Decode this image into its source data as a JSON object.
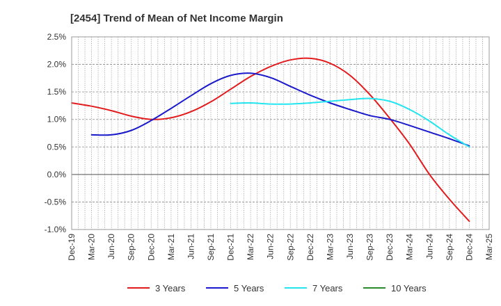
{
  "chart_data": {
    "type": "line",
    "title": "[2454]  Trend of Mean of Net Income Margin",
    "xlabel": "",
    "ylabel": "",
    "x_ticks": [
      "Dec-19",
      "Mar-20",
      "Jun-20",
      "Sep-20",
      "Dec-20",
      "Mar-21",
      "Jun-21",
      "Sep-21",
      "Dec-21",
      "Mar-22",
      "Jun-22",
      "Sep-22",
      "Dec-22",
      "Mar-23",
      "Jun-23",
      "Sep-23",
      "Dec-23",
      "Mar-24",
      "Jun-24",
      "Sep-24",
      "Dec-24",
      "Mar-25"
    ],
    "y_ticks": [
      "2.5%",
      "2.0%",
      "1.5%",
      "1.0%",
      "0.5%",
      "0.0%",
      "-0.5%",
      "-1.0%"
    ],
    "ylim": [
      -1.0,
      2.5
    ],
    "grid": true,
    "legend_position": "bottom",
    "series": [
      {
        "name": "3 Years",
        "color": "#e31a1c",
        "points": [
          [
            "Dec-19",
            1.3
          ],
          [
            "Mar-20",
            1.24
          ],
          [
            "Jun-20",
            1.16
          ],
          [
            "Sep-20",
            1.06
          ],
          [
            "Dec-20",
            1.0
          ],
          [
            "Mar-21",
            1.03
          ],
          [
            "Jun-21",
            1.14
          ],
          [
            "Sep-21",
            1.32
          ],
          [
            "Dec-21",
            1.55
          ],
          [
            "Mar-22",
            1.78
          ],
          [
            "Jun-22",
            1.96
          ],
          [
            "Sep-22",
            2.08
          ],
          [
            "Dec-22",
            2.11
          ],
          [
            "Mar-23",
            2.02
          ],
          [
            "Jun-23",
            1.8
          ],
          [
            "Sep-23",
            1.45
          ],
          [
            "Dec-23",
            1.02
          ],
          [
            "Mar-24",
            0.55
          ],
          [
            "Jun-24",
            0.0
          ],
          [
            "Sep-24",
            -0.45
          ],
          [
            "Dec-24",
            -0.85
          ]
        ]
      },
      {
        "name": "5 Years",
        "color": "#1a1acc",
        "points": [
          [
            "Mar-20",
            0.72
          ],
          [
            "Jun-20",
            0.72
          ],
          [
            "Sep-20",
            0.8
          ],
          [
            "Dec-20",
            0.98
          ],
          [
            "Mar-21",
            1.2
          ],
          [
            "Jun-21",
            1.43
          ],
          [
            "Sep-21",
            1.65
          ],
          [
            "Dec-21",
            1.8
          ],
          [
            "Mar-22",
            1.84
          ],
          [
            "Jun-22",
            1.76
          ],
          [
            "Sep-22",
            1.6
          ],
          [
            "Dec-22",
            1.44
          ],
          [
            "Mar-23",
            1.3
          ],
          [
            "Jun-23",
            1.18
          ],
          [
            "Sep-23",
            1.07
          ],
          [
            "Dec-23",
            1.0
          ],
          [
            "Mar-24",
            0.89
          ],
          [
            "Jun-24",
            0.77
          ],
          [
            "Sep-24",
            0.65
          ],
          [
            "Dec-24",
            0.52
          ]
        ]
      },
      {
        "name": "7 Years",
        "color": "#22e5f0",
        "points": [
          [
            "Dec-21",
            1.29
          ],
          [
            "Mar-22",
            1.3
          ],
          [
            "Jun-22",
            1.28
          ],
          [
            "Sep-22",
            1.28
          ],
          [
            "Dec-22",
            1.3
          ],
          [
            "Mar-23",
            1.33
          ],
          [
            "Jun-23",
            1.36
          ],
          [
            "Sep-23",
            1.38
          ],
          [
            "Dec-23",
            1.33
          ],
          [
            "Mar-24",
            1.18
          ],
          [
            "Jun-24",
            0.97
          ],
          [
            "Sep-24",
            0.72
          ],
          [
            "Dec-24",
            0.5
          ]
        ]
      },
      {
        "name": "10 Years",
        "color": "#2a8a2a",
        "points": []
      }
    ]
  }
}
